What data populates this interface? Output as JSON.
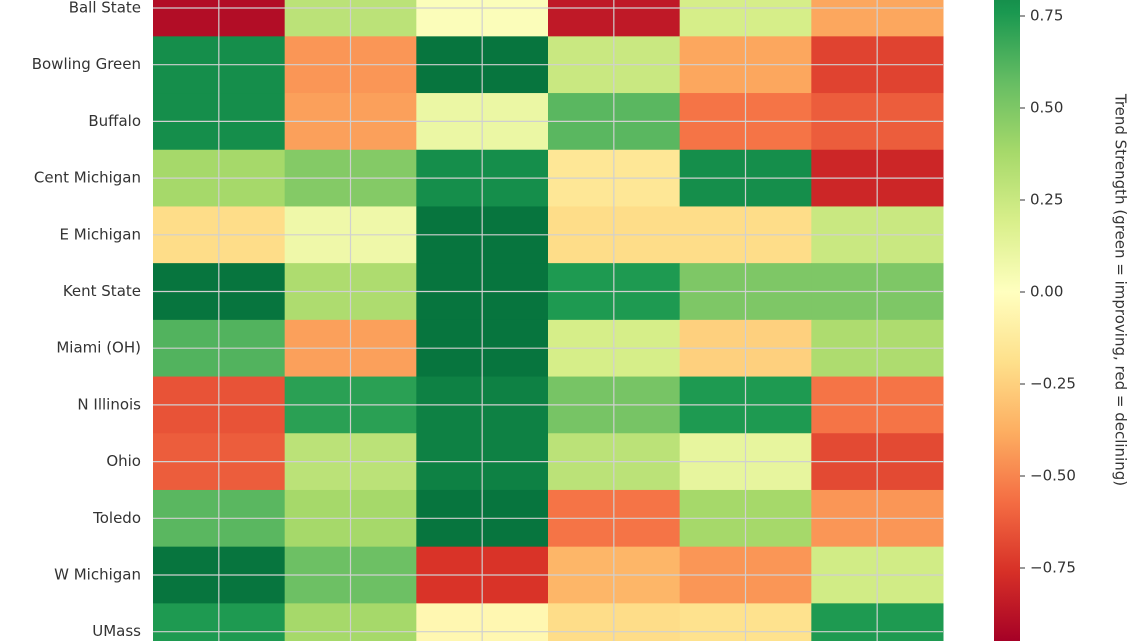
{
  "chart_data": {
    "type": "heatmap",
    "x": [
      null,
      null,
      null,
      null,
      null,
      null
    ],
    "y": [
      "Ball State",
      "Bowling Green",
      "Buffalo",
      "Cent Michigan",
      "E Michigan",
      "Kent State",
      "Miami (OH)",
      "N Illinois",
      "Ohio",
      "Toledo",
      "W Michigan",
      "UMass"
    ],
    "values": [
      [
        -0.9,
        0.3,
        0.02,
        -0.85,
        0.2,
        -0.4
      ],
      [
        0.8,
        -0.45,
        0.9,
        0.25,
        -0.4,
        -0.7
      ],
      [
        0.8,
        -0.42,
        0.1,
        0.6,
        -0.55,
        -0.62
      ],
      [
        0.38,
        0.48,
        0.8,
        -0.15,
        0.8,
        -0.8
      ],
      [
        -0.2,
        0.08,
        0.9,
        -0.2,
        -0.2,
        0.25
      ],
      [
        0.9,
        0.35,
        0.9,
        0.75,
        0.5,
        0.5
      ],
      [
        0.62,
        -0.42,
        0.9,
        0.2,
        -0.25,
        0.35
      ],
      [
        -0.65,
        0.72,
        0.85,
        0.52,
        0.75,
        -0.55
      ],
      [
        -0.62,
        0.3,
        0.85,
        0.3,
        0.12,
        -0.68
      ],
      [
        0.6,
        0.38,
        0.9,
        -0.55,
        0.38,
        -0.45
      ],
      [
        0.9,
        0.55,
        -0.75,
        -0.35,
        -0.45,
        0.22
      ],
      [
        0.75,
        0.38,
        -0.05,
        -0.2,
        -0.18,
        0.75
      ]
    ],
    "colormap": [
      "#a50026",
      "#d73027",
      "#f46d43",
      "#fdae61",
      "#fee08b",
      "#ffffbf",
      "#d9ef8b",
      "#a6d96a",
      "#66bd63",
      "#1a9850",
      "#006837"
    ],
    "zlim": [
      -0.95,
      0.95
    ],
    "zticks": [
      0.75,
      {
        "value": 0.5,
        "label": "0.50"
      },
      0.25,
      {
        "value": 0,
        "label": "0.00"
      },
      {
        "value": -0.25,
        "label": "−0.25"
      },
      {
        "value": -0.5,
        "label": "−0.50"
      },
      {
        "value": -0.75,
        "label": "−0.75"
      }
    ],
    "colorbar_label": "Trend Strength (green = improving, red = declining)",
    "grid": true
  }
}
